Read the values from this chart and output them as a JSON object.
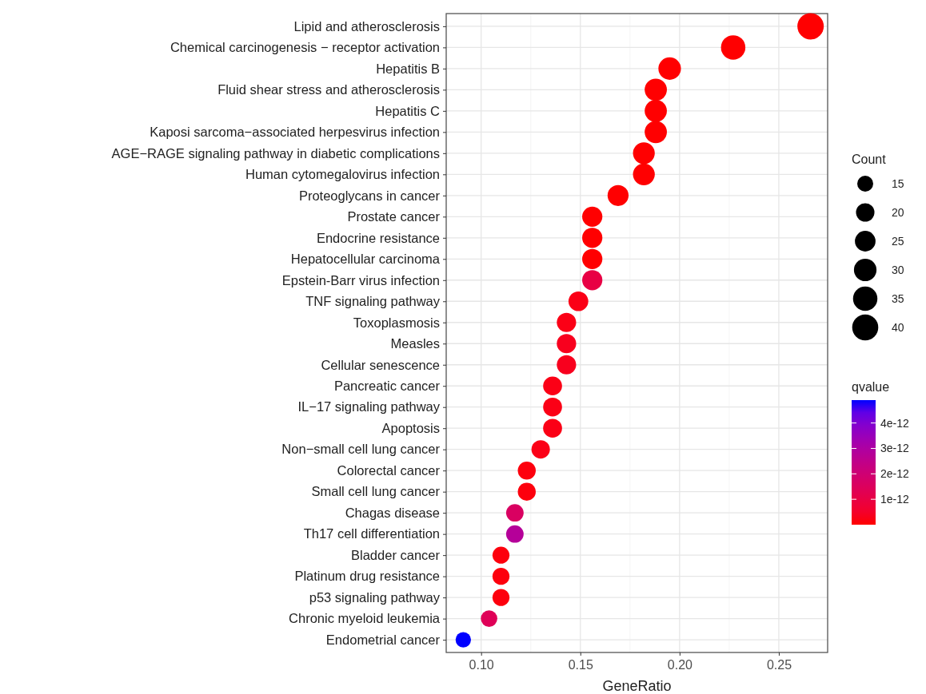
{
  "chart_data": {
    "type": "bubble",
    "orientation": "horizontal",
    "categories": [
      "Lipid and atherosclerosis",
      "Chemical carcinogenesis − receptor activation",
      "Hepatitis B",
      "Fluid shear stress and atherosclerosis",
      "Hepatitis C",
      "Kaposi sarcoma−associated herpesvirus infection",
      "AGE−RAGE signaling pathway in diabetic complications",
      "Human cytomegalovirus infection",
      "Proteoglycans in cancer",
      "Prostate cancer",
      "Endocrine resistance",
      "Hepatocellular carcinoma",
      "Epstein-Barr virus infection",
      "TNF signaling pathway",
      "Toxoplasmosis",
      "Measles",
      "Cellular senescence",
      "Pancreatic cancer",
      "IL−17 signaling pathway",
      "Apoptosis",
      "Non−small cell lung cancer",
      "Colorectal cancer",
      "Small cell lung cancer",
      "Chagas disease",
      "Th17 cell differentiation",
      "Bladder cancer",
      "Platinum drug resistance",
      "p53 signaling pathway",
      "Chronic myeloid leukemia",
      "Endometrial cancer"
    ],
    "values": [
      0.266,
      0.227,
      0.195,
      0.188,
      0.188,
      0.188,
      0.182,
      0.182,
      0.169,
      0.156,
      0.156,
      0.156,
      0.156,
      0.149,
      0.143,
      0.143,
      0.143,
      0.136,
      0.136,
      0.136,
      0.13,
      0.123,
      0.123,
      0.117,
      0.117,
      0.11,
      0.11,
      0.11,
      0.104,
      0.091
    ],
    "sizes": [
      41,
      35,
      30,
      29,
      29,
      29,
      28,
      28,
      26,
      24,
      24,
      24,
      24,
      23,
      22,
      22,
      22,
      21,
      21,
      21,
      20,
      19,
      19,
      18,
      18,
      17,
      17,
      17,
      16,
      14
    ],
    "size_legend": [
      15,
      20,
      25,
      30,
      35,
      40
    ],
    "cvalues": [
      1e-14,
      1e-14,
      1e-14,
      1e-14,
      1e-14,
      1e-14,
      1e-14,
      1e-14,
      1e-14,
      1e-14,
      1e-14,
      1e-14,
      1e-12,
      2e-13,
      2e-13,
      3e-13,
      3e-13,
      2e-13,
      2e-13,
      2e-13,
      2e-13,
      1e-13,
      1e-13,
      1.6e-12,
      2.8e-12,
      1e-13,
      1e-13,
      1e-13,
      1.4e-12,
      4.9e-12
    ],
    "clim": [
      0,
      4.9e-12
    ],
    "cticks": [
      {
        "value": 1e-12,
        "label": "1e-12"
      },
      {
        "value": 2e-12,
        "label": "2e-12"
      },
      {
        "value": 3e-12,
        "label": "3e-12"
      },
      {
        "value": 4e-12,
        "label": "4e-12"
      }
    ],
    "clabel": "qvalue",
    "legend_title": "Count",
    "xlabel": "GeneRatio",
    "xlim": [
      0.0824,
      0.2746
    ],
    "xticks": [
      {
        "value": 0.1,
        "label": "0.10"
      },
      {
        "value": 0.15,
        "label": "0.15"
      },
      {
        "value": 0.2,
        "label": "0.20"
      },
      {
        "value": 0.25,
        "label": "0.25"
      }
    ],
    "grid": true
  }
}
